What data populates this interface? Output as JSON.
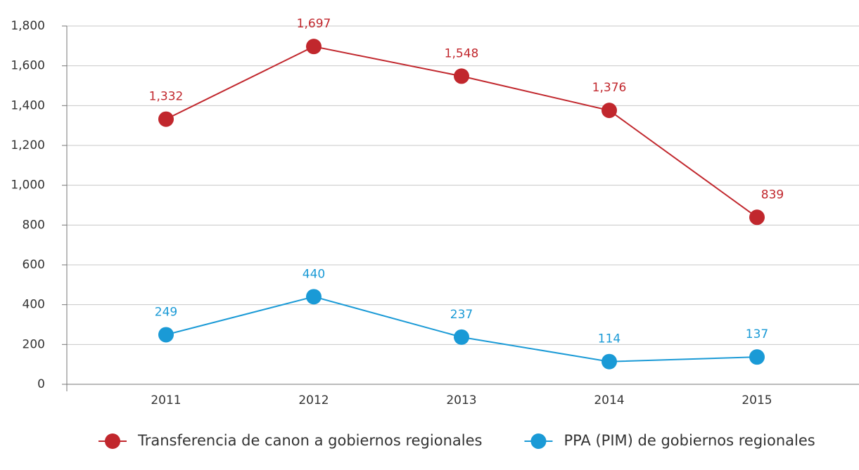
{
  "chart_data": {
    "type": "line",
    "categories": [
      "2011",
      "2012",
      "2013",
      "2014",
      "2015"
    ],
    "series": [
      {
        "name": "Transferencia de canon a gobiernos regionales",
        "color": "#c1272d",
        "values": [
          1332,
          1697,
          1548,
          1376,
          839
        ],
        "value_labels": [
          "1,332",
          "1,697",
          "1,548",
          "1,376",
          "839"
        ]
      },
      {
        "name": "PPA (PIM) de gobiernos regionales",
        "color": "#1a9ad6",
        "values": [
          249,
          440,
          237,
          114,
          137
        ],
        "value_labels": [
          "249",
          "440",
          "237",
          "114",
          "137"
        ]
      }
    ],
    "ylim": [
      0,
      1800
    ],
    "yticks": [
      0,
      200,
      400,
      600,
      800,
      {
        "value": 1000,
        "label": "1,000"
      },
      {
        "value": 1200,
        "label": "1,200"
      },
      {
        "value": 1400,
        "label": "1,400"
      },
      {
        "value": 1600,
        "label": "1,600"
      },
      {
        "value": 1800,
        "label": "1,800"
      }
    ],
    "grid": true,
    "legend": "bottom"
  }
}
